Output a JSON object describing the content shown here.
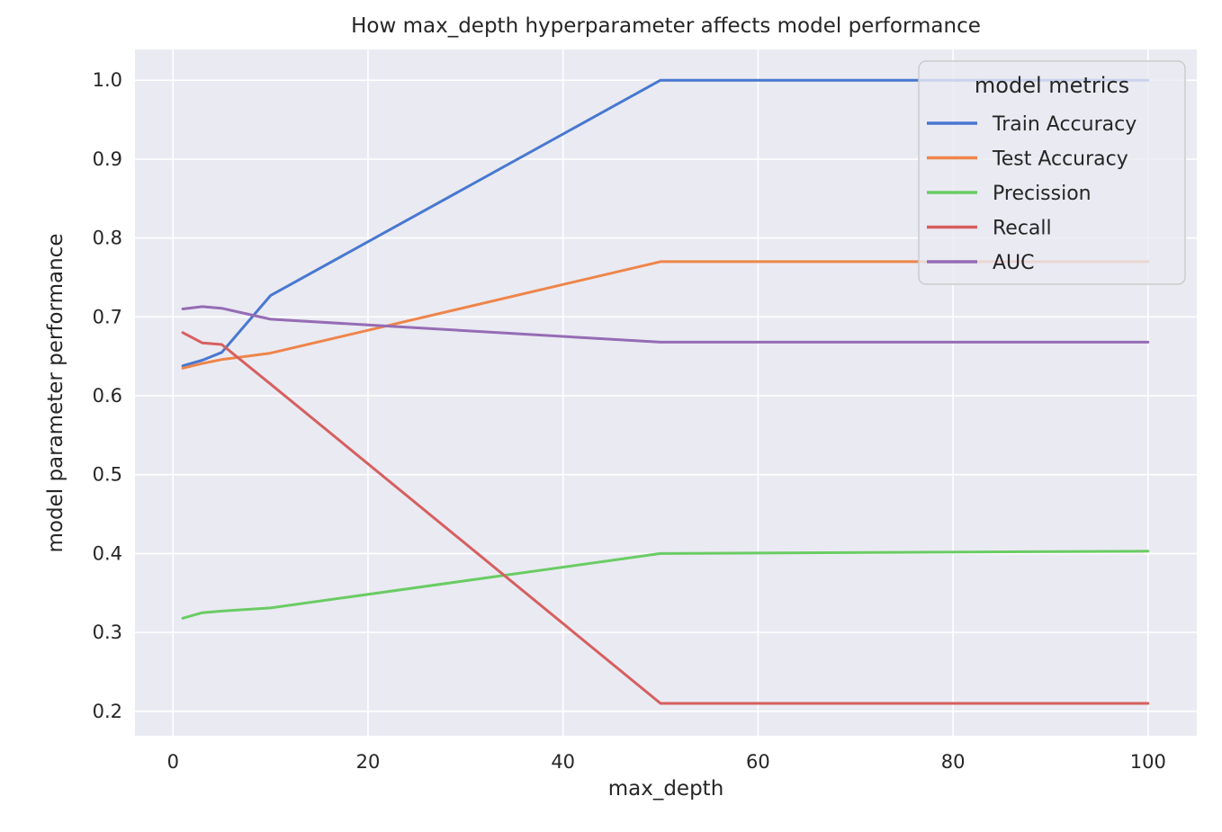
{
  "chart_data": {
    "type": "line",
    "title": "How max_depth hyperparameter affects model performance",
    "xlabel": "max_depth",
    "ylabel": "model parameter performance",
    "x": [
      1,
      3,
      5,
      10,
      50,
      100
    ],
    "series": [
      {
        "name": "Train Accuracy",
        "color": "#4878D0",
        "values": [
          0.638,
          0.645,
          0.655,
          0.727,
          1.0,
          1.0
        ]
      },
      {
        "name": "Test Accuracy",
        "color": "#EE854A",
        "values": [
          0.635,
          0.641,
          0.646,
          0.654,
          0.77,
          0.77
        ]
      },
      {
        "name": "Precission",
        "color": "#6ACC64",
        "values": [
          0.318,
          0.325,
          0.327,
          0.331,
          0.4,
          0.403
        ]
      },
      {
        "name": "Recall",
        "color": "#D65F5F",
        "values": [
          0.68,
          0.667,
          0.665,
          0.615,
          0.21,
          0.21
        ]
      },
      {
        "name": "AUC",
        "color": "#956CB4",
        "values": [
          0.71,
          0.713,
          0.711,
          0.697,
          0.668,
          0.668
        ]
      }
    ],
    "xlim": [
      -3.9,
      105.0
    ],
    "ylim": [
      0.169,
      1.039
    ],
    "xticks": [
      0,
      20,
      40,
      60,
      80,
      100
    ],
    "yticks": [
      0.2,
      0.3,
      0.4,
      0.5,
      0.6,
      0.7,
      0.8,
      0.9,
      1.0
    ],
    "grid": true,
    "legend": {
      "title": "model metrics",
      "position": "upper right"
    }
  },
  "style": {
    "figure_bg": "#FFFFFF",
    "plot_bg": "#EAEAF2",
    "grid_color": "#FFFFFF",
    "text_color": "#262626",
    "legend_bg": "#EAEAF2",
    "legend_border": "#CCCCCC"
  }
}
